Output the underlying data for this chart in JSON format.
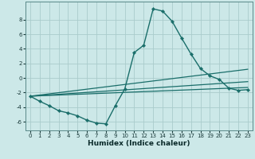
{
  "xlabel": "Humidex (Indice chaleur)",
  "bg_color": "#cce8e8",
  "grid_color": "#aacccc",
  "line_color": "#1a6e6a",
  "xlim": [
    -0.5,
    23.5
  ],
  "ylim": [
    -7.2,
    10.5
  ],
  "xticks": [
    0,
    1,
    2,
    3,
    4,
    5,
    6,
    7,
    8,
    9,
    10,
    11,
    12,
    13,
    14,
    15,
    16,
    17,
    18,
    19,
    20,
    21,
    22,
    23
  ],
  "yticks": [
    -6,
    -4,
    -2,
    0,
    2,
    4,
    6,
    8
  ],
  "main_line": {
    "x": [
      0,
      1,
      2,
      3,
      4,
      5,
      6,
      7,
      8,
      9,
      10,
      11,
      12,
      13,
      14,
      15,
      16,
      17,
      18,
      19,
      20,
      21,
      22,
      23
    ],
    "y": [
      -2.5,
      -3.2,
      -3.8,
      -4.5,
      -4.8,
      -5.2,
      -5.8,
      -6.2,
      -6.3,
      -3.8,
      -1.5,
      3.5,
      4.5,
      9.5,
      9.2,
      7.8,
      5.5,
      3.3,
      1.3,
      0.3,
      -0.2,
      -1.4,
      -1.7,
      -1.6
    ]
  },
  "ref_lines": [
    {
      "x": [
        0,
        23
      ],
      "y": [
        -2.5,
        1.2
      ]
    },
    {
      "x": [
        0,
        23
      ],
      "y": [
        -2.5,
        -0.5
      ]
    },
    {
      "x": [
        0,
        23
      ],
      "y": [
        -2.5,
        -1.3
      ]
    }
  ]
}
